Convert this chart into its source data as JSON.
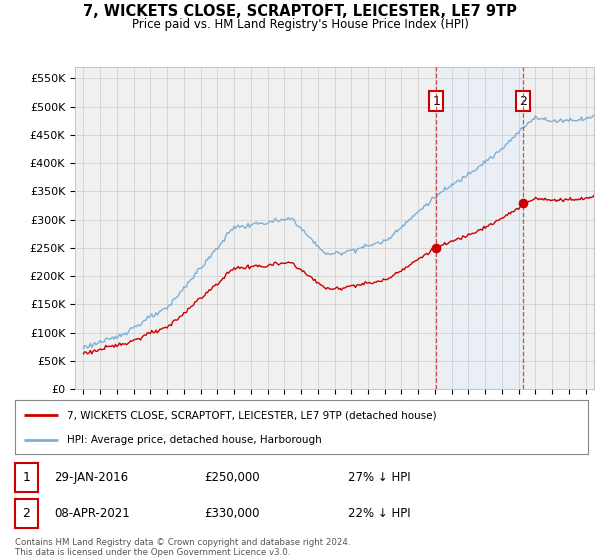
{
  "title": "7, WICKETS CLOSE, SCRAPTOFT, LEICESTER, LE7 9TP",
  "subtitle": "Price paid vs. HM Land Registry's House Price Index (HPI)",
  "ylabel_ticks": [
    "£0",
    "£50K",
    "£100K",
    "£150K",
    "£200K",
    "£250K",
    "£300K",
    "£350K",
    "£400K",
    "£450K",
    "£500K",
    "£550K"
  ],
  "ylim": [
    0,
    570000
  ],
  "yticks": [
    0,
    50000,
    100000,
    150000,
    200000,
    250000,
    300000,
    350000,
    400000,
    450000,
    500000,
    550000
  ],
  "xlim_start": 1994.5,
  "xlim_end": 2025.5,
  "sale1_x": 2016.08,
  "sale1_y": 250000,
  "sale2_x": 2021.27,
  "sale2_y": 330000,
  "sale1_date": "29-JAN-2016",
  "sale1_price": "£250,000",
  "sale1_hpi": "27% ↓ HPI",
  "sale2_date": "08-APR-2021",
  "sale2_price": "£330,000",
  "sale2_hpi": "22% ↓ HPI",
  "legend_line1": "7, WICKETS CLOSE, SCRAPTOFT, LEICESTER, LE7 9TP (detached house)",
  "legend_line2": "HPI: Average price, detached house, Harborough",
  "footer": "Contains HM Land Registry data © Crown copyright and database right 2024.\nThis data is licensed under the Open Government Licence v3.0.",
  "price_color": "#cc0000",
  "hpi_color": "#7eb0d5",
  "shade_color": "#ddeeff",
  "background_color": "#ffffff",
  "plot_bg_color": "#f0f0f0"
}
